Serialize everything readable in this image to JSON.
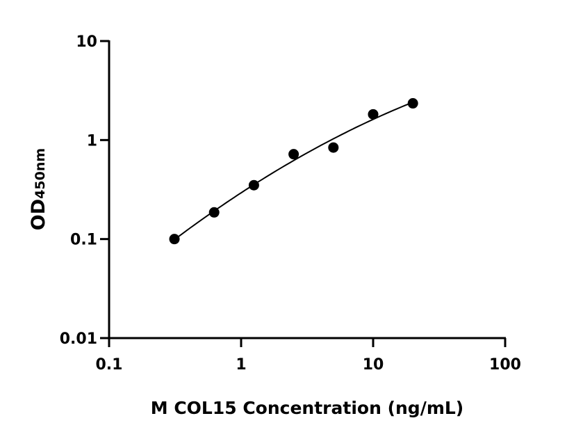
{
  "chart_data": {
    "type": "scatter",
    "title": "",
    "xlabel": "M COL15 Concentration (ng/mL)",
    "ylabel_main": "OD",
    "ylabel_sub": "450nm",
    "x_scale": "log",
    "y_scale": "log",
    "xlim": [
      0.1,
      100
    ],
    "ylim": [
      0.01,
      10
    ],
    "x_ticks": [
      0.1,
      1,
      10,
      100
    ],
    "x_tick_labels": [
      "0.1",
      "1",
      "10",
      "100"
    ],
    "y_ticks": [
      0.01,
      0.1,
      1,
      10
    ],
    "y_tick_labels": [
      "0.01",
      "0.1",
      "1",
      "10"
    ],
    "grid": false,
    "legend": "none",
    "fit_curve": true,
    "color": "#000000",
    "series": [
      {
        "x": [
          0.3125,
          0.625,
          1.25,
          2.5,
          5,
          10,
          20
        ],
        "y": [
          0.1,
          0.186,
          0.35,
          0.72,
          0.84,
          1.82,
          2.35
        ]
      }
    ]
  }
}
